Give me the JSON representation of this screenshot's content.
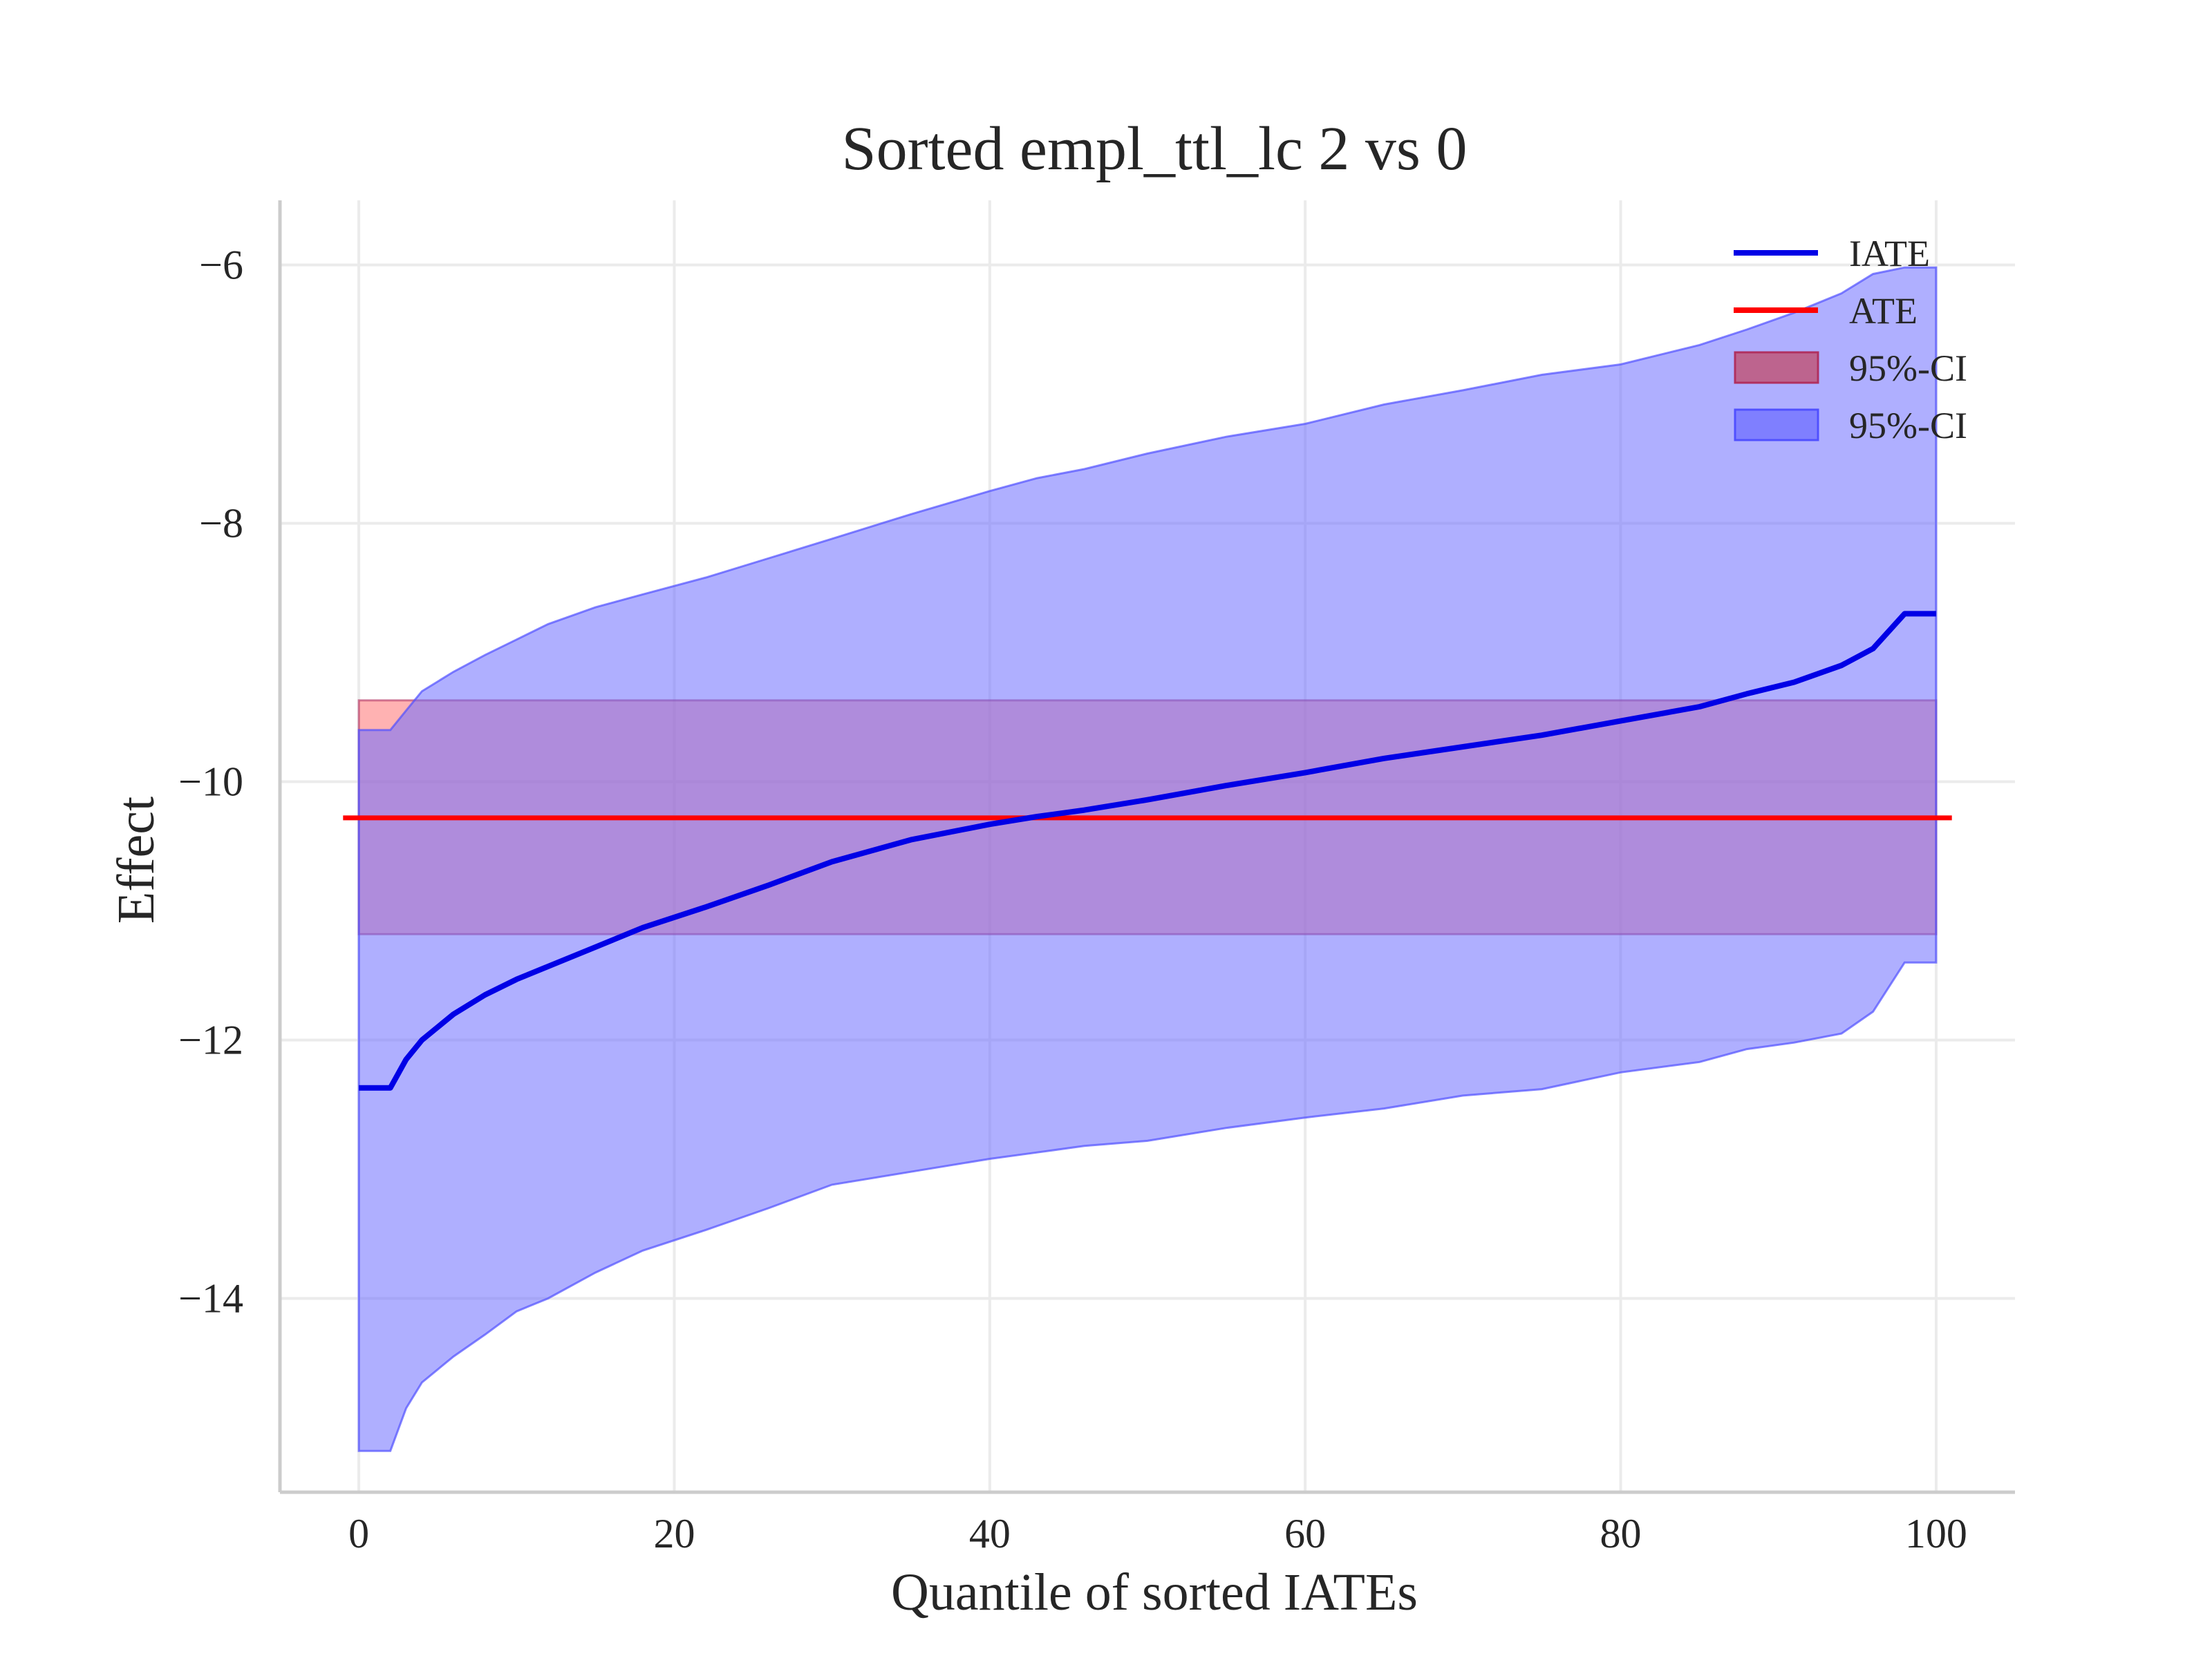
{
  "chart_data": {
    "type": "line",
    "title": "Sorted empl_ttl_lc 2 vs 0",
    "xlabel": "Quantile of sorted IATEs",
    "ylabel": "Effect",
    "xlim": [
      -5,
      105
    ],
    "ylim": [
      -15.5,
      -5.5
    ],
    "xticks": [
      0,
      20,
      40,
      60,
      80,
      100
    ],
    "xtick_labels": [
      "0",
      "20",
      "40",
      "60",
      "80",
      "100"
    ],
    "yticks": [
      -6,
      -8,
      -10,
      -12,
      -14
    ],
    "ytick_labels": [
      "−6",
      "−8",
      "−10",
      "−12",
      "−14"
    ],
    "grid": true,
    "legend_position": "top-right",
    "legend": [
      "IATE",
      "ATE",
      "95%-CI",
      "95%-CI"
    ],
    "colors": {
      "iate": "#0000e6",
      "ate": "#ff0000",
      "ate_ci_fill": "#ff6666",
      "ate_ci_edge": "#b03060",
      "iate_ci_fill": "#6e6eff",
      "iate_ci_edge": "#5050ff",
      "grid": "#ebebeb",
      "spine": "#cccccc"
    },
    "series": [
      {
        "name": "IATE",
        "kind": "line",
        "x": [
          0,
          2,
          3,
          4,
          6,
          8,
          10,
          12,
          15,
          18,
          22,
          26,
          30,
          35,
          40,
          43,
          46,
          50,
          55,
          60,
          65,
          70,
          75,
          80,
          85,
          88,
          91,
          94,
          96,
          98,
          100
        ],
        "y": [
          -12.37,
          -12.37,
          -12.15,
          -12.0,
          -11.8,
          -11.65,
          -11.53,
          -11.43,
          -11.28,
          -11.13,
          -10.97,
          -10.8,
          -10.62,
          -10.45,
          -10.33,
          -10.27,
          -10.22,
          -10.14,
          -10.03,
          -9.93,
          -9.82,
          -9.73,
          -9.64,
          -9.53,
          -9.42,
          -9.32,
          -9.23,
          -9.1,
          -8.97,
          -8.7,
          -8.7
        ]
      },
      {
        "name": "ATE",
        "kind": "line",
        "x": [
          -1,
          101
        ],
        "y": [
          -10.28,
          -10.28
        ]
      },
      {
        "name": "95%-CI",
        "kind": "band",
        "x": [
          0,
          100
        ],
        "lower": [
          -11.18,
          -11.18
        ],
        "upper": [
          -9.37,
          -9.37
        ]
      },
      {
        "name": "95%-CI",
        "kind": "band",
        "x": [
          0,
          2,
          3,
          4,
          6,
          8,
          10,
          12,
          15,
          18,
          22,
          26,
          30,
          35,
          40,
          43,
          46,
          50,
          55,
          60,
          65,
          70,
          75,
          80,
          85,
          88,
          91,
          94,
          96,
          98,
          100
        ],
        "lower": [
          -15.18,
          -15.18,
          -14.85,
          -14.65,
          -14.45,
          -14.28,
          -14.1,
          -14.0,
          -13.8,
          -13.63,
          -13.47,
          -13.3,
          -13.12,
          -13.02,
          -12.92,
          -12.87,
          -12.82,
          -12.78,
          -12.68,
          -12.6,
          -12.53,
          -12.43,
          -12.38,
          -12.25,
          -12.17,
          -12.07,
          -12.02,
          -11.95,
          -11.78,
          -11.4,
          -11.4
        ],
        "upper": [
          -9.6,
          -9.6,
          -9.45,
          -9.3,
          -9.15,
          -9.02,
          -8.9,
          -8.78,
          -8.65,
          -8.55,
          -8.42,
          -8.27,
          -8.12,
          -7.93,
          -7.75,
          -7.65,
          -7.58,
          -7.46,
          -7.33,
          -7.23,
          -7.08,
          -6.97,
          -6.85,
          -6.77,
          -6.62,
          -6.5,
          -6.37,
          -6.22,
          -6.07,
          -6.02,
          -6.02
        ]
      }
    ]
  }
}
